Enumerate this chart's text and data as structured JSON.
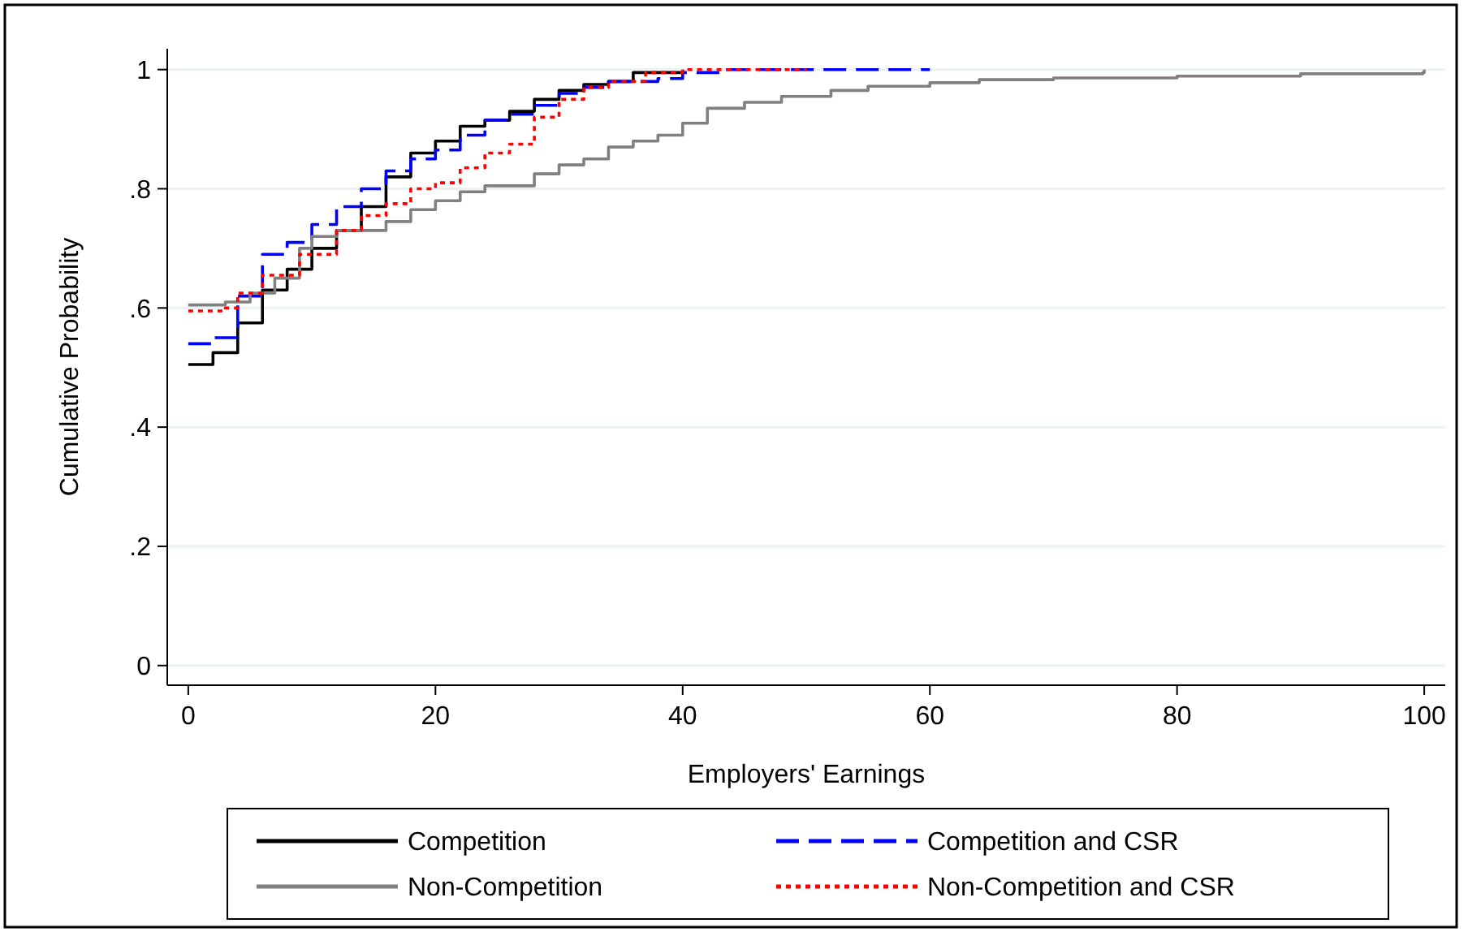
{
  "chart_data": {
    "type": "step",
    "xlabel": "Employers' Earnings",
    "ylabel": "Cumulative Probability",
    "xlim": [
      -1.7,
      101.7
    ],
    "xticks": [
      0,
      20,
      40,
      60,
      80,
      100
    ],
    "ylim": [
      -0.033,
      1.035
    ],
    "yticks": [
      0,
      {
        "value": 0.2,
        "label": ".2"
      },
      {
        "value": 0.4,
        "label": ".4"
      },
      {
        "value": 0.6,
        "label": ".6"
      },
      {
        "value": 0.8,
        "label": ".8"
      },
      1
    ],
    "grid": "y",
    "legend": "bottom",
    "series": [
      {
        "name": "Competition",
        "color": "#000000",
        "line_style": "solid",
        "x": [
          0,
          2,
          4,
          6,
          8,
          10,
          12,
          14,
          16,
          18,
          20,
          22,
          24,
          26,
          28,
          30,
          32,
          34,
          36,
          40
        ],
        "values": [
          0.505,
          0.525,
          0.575,
          0.63,
          0.665,
          0.7,
          0.73,
          0.77,
          0.82,
          0.86,
          0.88,
          0.905,
          0.915,
          0.93,
          0.95,
          0.965,
          0.975,
          0.98,
          0.995,
          1
        ]
      },
      {
        "name": "Competition and CSR",
        "color": "#0000ff",
        "line_style": "dashed",
        "x": [
          0,
          2,
          4,
          6,
          8,
          10,
          12,
          14,
          16,
          18,
          20,
          22,
          24,
          26,
          28,
          30,
          32,
          34,
          38,
          40,
          43,
          60
        ],
        "values": [
          0.54,
          0.55,
          0.62,
          0.69,
          0.71,
          0.74,
          0.77,
          0.8,
          0.83,
          0.85,
          0.865,
          0.89,
          0.915,
          0.925,
          0.94,
          0.96,
          0.97,
          0.98,
          0.985,
          0.995,
          1,
          1
        ]
      },
      {
        "name": "Non-Competition",
        "color": "#808080",
        "line_style": "solid",
        "x": [
          0,
          3,
          5,
          7,
          9,
          10,
          12,
          16,
          18,
          20,
          22,
          24,
          28,
          30,
          32,
          34,
          36,
          38,
          40,
          42,
          45,
          48,
          52,
          55,
          60,
          64,
          70,
          80,
          90,
          99.9,
          100
        ],
        "values": [
          0.605,
          0.61,
          0.625,
          0.65,
          0.7,
          0.72,
          0.73,
          0.745,
          0.765,
          0.78,
          0.795,
          0.805,
          0.825,
          0.84,
          0.85,
          0.87,
          0.88,
          0.89,
          0.91,
          0.935,
          0.945,
          0.955,
          0.965,
          0.972,
          0.978,
          0.983,
          0.986,
          0.989,
          0.993,
          0.995,
          1
        ]
      },
      {
        "name": "Non-Competition and CSR",
        "color": "#ff0000",
        "line_style": "dotted",
        "x": [
          0,
          3,
          4,
          6,
          9,
          12,
          14,
          16,
          18,
          20,
          22,
          24,
          26,
          28,
          30,
          32,
          34,
          37,
          40,
          50
        ],
        "values": [
          0.595,
          0.6,
          0.625,
          0.655,
          0.69,
          0.73,
          0.755,
          0.775,
          0.8,
          0.81,
          0.835,
          0.86,
          0.875,
          0.92,
          0.95,
          0.97,
          0.98,
          0.995,
          1,
          1
        ]
      }
    ]
  }
}
